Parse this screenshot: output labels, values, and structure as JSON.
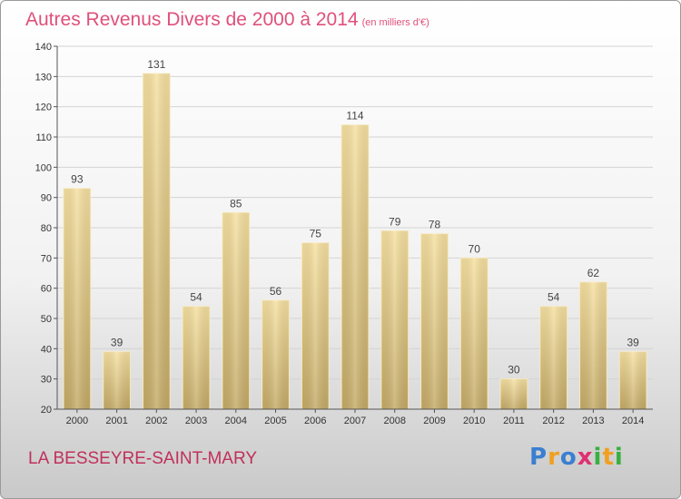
{
  "header": {
    "title": "Autres Revenus Divers de 2000 à 2014",
    "unit": "(en milliers d'€)"
  },
  "footer": {
    "town": "LA BESSEYRE-SAINT-MARY",
    "logo_letters": [
      {
        "ch": "P",
        "color": "#3a7fd0"
      },
      {
        "ch": "r",
        "color": "#f0a020"
      },
      {
        "ch": "o",
        "color": "#3a7fd0"
      },
      {
        "ch": "x",
        "color": "#e03070"
      },
      {
        "ch": "i",
        "color": "#38b040"
      },
      {
        "ch": "t",
        "color": "#f0a020"
      },
      {
        "ch": "i",
        "color": "#38b040"
      }
    ]
  },
  "chart_data": {
    "type": "bar",
    "title": "Autres Revenus Divers de 2000 à 2014",
    "subtitle": "(en milliers d'€)",
    "categories": [
      "2000",
      "2001",
      "2002",
      "2003",
      "2004",
      "2005",
      "2006",
      "2007",
      "2008",
      "2009",
      "2010",
      "2011",
      "2012",
      "2013",
      "2014"
    ],
    "values": [
      93,
      39,
      131,
      54,
      85,
      56,
      75,
      114,
      79,
      78,
      70,
      30,
      54,
      62,
      39
    ],
    "ylim": [
      20,
      140
    ],
    "yticks": [
      20,
      30,
      40,
      50,
      60,
      70,
      80,
      90,
      100,
      110,
      120,
      130,
      140
    ],
    "grid": true,
    "legend": "none",
    "bar_color": "#e8cf8a"
  }
}
